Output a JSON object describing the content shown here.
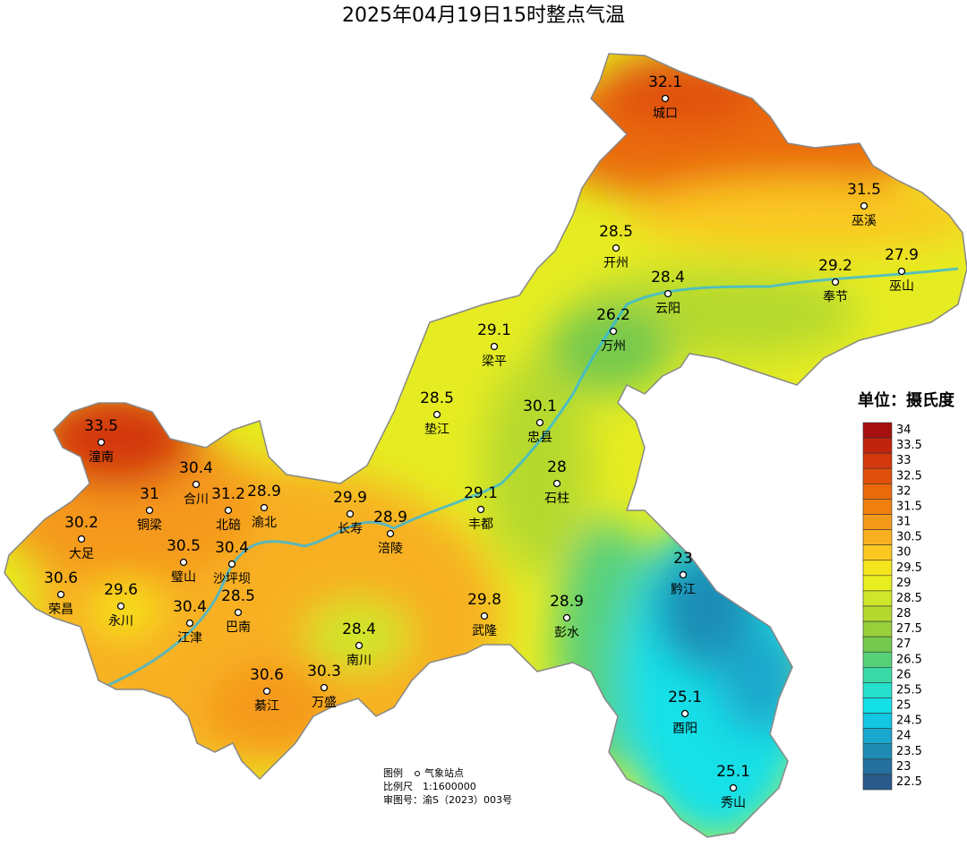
{
  "title": "2025年04月19日15时整点气温",
  "stations": [
    {
      "name": "城口",
      "value": 32.1
    },
    {
      "name": "巫溪",
      "value": 31.5
    },
    {
      "name": "开州",
      "value": 28.5
    },
    {
      "name": "巫山",
      "value": 27.9
    },
    {
      "name": "奉节",
      "value": 29.2
    },
    {
      "name": "云阳",
      "value": 28.4
    },
    {
      "name": "万州",
      "value": 26.2
    },
    {
      "name": "梁平",
      "value": 29.1
    },
    {
      "name": "垫江",
      "value": 28.5
    },
    {
      "name": "忠县",
      "value": 30.1
    },
    {
      "name": "潼南",
      "value": 33.5
    },
    {
      "name": "合川",
      "value": 30.4
    },
    {
      "name": "石柱",
      "value": 28
    },
    {
      "name": "铜梁",
      "value": 31
    },
    {
      "name": "北碚",
      "value": 31.2
    },
    {
      "name": "渝北",
      "value": 28.9
    },
    {
      "name": "长寿",
      "value": 29.9
    },
    {
      "name": "丰都",
      "value": 29.1
    },
    {
      "name": "涪陵",
      "value": 28.9
    },
    {
      "name": "大足",
      "value": 30.2
    },
    {
      "name": "璧山",
      "value": 30.5
    },
    {
      "name": "沙坪坝",
      "value": 30.4
    },
    {
      "name": "黔江",
      "value": 23
    },
    {
      "name": "荣昌",
      "value": 30.6
    },
    {
      "name": "永川",
      "value": 29.6
    },
    {
      "name": "巴南",
      "value": 28.5
    },
    {
      "name": "武隆",
      "value": 29.8
    },
    {
      "name": "彭水",
      "value": 28.9
    },
    {
      "name": "江津",
      "value": 30.4
    },
    {
      "name": "南川",
      "value": 28.4
    },
    {
      "name": "綦江",
      "value": 30.6
    },
    {
      "name": "万盛",
      "value": 30.3
    },
    {
      "name": "酉阳",
      "value": 25.1
    },
    {
      "name": "秀山",
      "value": 25.1
    }
  ],
  "legend": {
    "title": "单位：摄氏度",
    "levels": [
      {
        "value": 34,
        "color": "#a50f0f"
      },
      {
        "value": 33.5,
        "color": "#c0240f"
      },
      {
        "value": 33,
        "color": "#d4380d"
      },
      {
        "value": 32.5,
        "color": "#e0500c"
      },
      {
        "value": 32,
        "color": "#ea6a0b"
      },
      {
        "value": 31.5,
        "color": "#f08010"
      },
      {
        "value": 31,
        "color": "#f5991a"
      },
      {
        "value": 30.5,
        "color": "#f8b020"
      },
      {
        "value": 30,
        "color": "#fac820"
      },
      {
        "value": 29.5,
        "color": "#f5e51e"
      },
      {
        "value": 29,
        "color": "#e8ef1e"
      },
      {
        "value": 28.5,
        "color": "#cfe62a"
      },
      {
        "value": 28,
        "color": "#b6d92f"
      },
      {
        "value": 27.5,
        "color": "#98cf3a"
      },
      {
        "value": 27,
        "color": "#74c94e"
      },
      {
        "value": 26.5,
        "color": "#58d07a"
      },
      {
        "value": 26,
        "color": "#3ad8a5"
      },
      {
        "value": 25.5,
        "color": "#25e0cc"
      },
      {
        "value": 25,
        "color": "#14e0e8"
      },
      {
        "value": 24.5,
        "color": "#12c5e0"
      },
      {
        "value": 24,
        "color": "#1aa8cc"
      },
      {
        "value": 23.5,
        "color": "#1f8cb5"
      },
      {
        "value": 23,
        "color": "#25709e"
      },
      {
        "value": 22.5,
        "color": "#2a5a8a"
      }
    ]
  },
  "notes": {
    "legend_label": "图例",
    "legend_item": "气象站点",
    "scale_label": "比例尺",
    "scale_value": "1:1600000",
    "approval": "审图号：渝S（2023）003号"
  }
}
